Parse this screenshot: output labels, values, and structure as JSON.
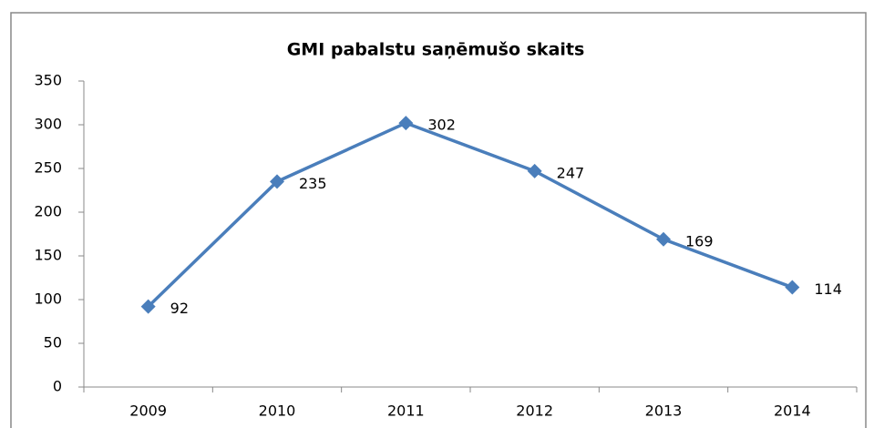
{
  "chart_data": {
    "type": "line",
    "title": "GMI pabalstu saņēmušo skaits",
    "categories": [
      "2009",
      "2010",
      "2011",
      "2012",
      "2013",
      "2014"
    ],
    "series": [
      {
        "name": "GMI pabalstu saņēmušo skaits",
        "color": "#4a7ebb",
        "values": [
          92,
          235,
          302,
          247,
          169,
          114
        ]
      }
    ],
    "ylim": [
      0,
      350
    ],
    "yticks": [
      0,
      50,
      100,
      150,
      200,
      250,
      300,
      350
    ],
    "grid": false,
    "data_labels": true
  }
}
